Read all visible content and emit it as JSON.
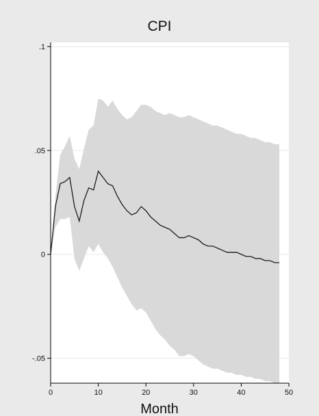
{
  "chart_data": {
    "type": "area",
    "title": "CPI",
    "xlabel": "Month",
    "ylabel": "",
    "xlim": [
      0,
      50
    ],
    "ylim": [
      -0.062,
      0.102
    ],
    "grid": true,
    "legend": "none",
    "x_ticks": [
      {
        "value": 0,
        "label": "0"
      },
      {
        "value": 10,
        "label": "10"
      },
      {
        "value": 20,
        "label": "20"
      },
      {
        "value": 30,
        "label": "30"
      },
      {
        "value": 40,
        "label": "40"
      },
      {
        "value": 50,
        "label": "50"
      }
    ],
    "y_ticks": [
      {
        "value": -0.05,
        "label": "-.05"
      },
      {
        "value": 0,
        "label": "0"
      },
      {
        "value": 0.05,
        "label": ".05"
      },
      {
        "value": 0.1,
        "label": ".1"
      }
    ],
    "x": [
      0,
      1,
      2,
      3,
      4,
      5,
      6,
      7,
      8,
      9,
      10,
      11,
      12,
      13,
      14,
      15,
      16,
      17,
      18,
      19,
      20,
      21,
      22,
      23,
      24,
      25,
      26,
      27,
      28,
      29,
      30,
      31,
      32,
      33,
      34,
      35,
      36,
      37,
      38,
      39,
      40,
      41,
      42,
      43,
      44,
      45,
      46,
      47,
      48
    ],
    "series": [
      {
        "role": "estimate",
        "values": [
          0.0,
          0.023,
          0.034,
          0.035,
          0.037,
          0.023,
          0.016,
          0.026,
          0.032,
          0.031,
          0.04,
          0.037,
          0.034,
          0.033,
          0.028,
          0.024,
          0.021,
          0.019,
          0.02,
          0.023,
          0.021,
          0.018,
          0.016,
          0.014,
          0.013,
          0.012,
          0.01,
          0.008,
          0.008,
          0.009,
          0.008,
          0.007,
          0.005,
          0.004,
          0.004,
          0.003,
          0.002,
          0.001,
          0.001,
          0.001,
          0.0,
          -0.001,
          -0.001,
          -0.002,
          -0.002,
          -0.003,
          -0.003,
          -0.004,
          -0.004
        ]
      },
      {
        "role": "upper_bound",
        "values": [
          0.0,
          0.028,
          0.048,
          0.052,
          0.057,
          0.046,
          0.041,
          0.051,
          0.06,
          0.062,
          0.075,
          0.074,
          0.071,
          0.074,
          0.07,
          0.067,
          0.065,
          0.066,
          0.069,
          0.072,
          0.072,
          0.071,
          0.069,
          0.068,
          0.067,
          0.068,
          0.067,
          0.066,
          0.066,
          0.067,
          0.066,
          0.065,
          0.064,
          0.063,
          0.062,
          0.062,
          0.061,
          0.06,
          0.059,
          0.058,
          0.058,
          0.057,
          0.056,
          0.056,
          0.055,
          0.054,
          0.054,
          0.053,
          0.053
        ]
      },
      {
        "role": "lower_bound",
        "values": [
          0.0,
          0.013,
          0.017,
          0.017,
          0.018,
          -0.002,
          -0.008,
          -0.002,
          0.004,
          0.001,
          0.005,
          0.001,
          -0.002,
          -0.006,
          -0.011,
          -0.016,
          -0.02,
          -0.024,
          -0.027,
          -0.026,
          -0.028,
          -0.032,
          -0.036,
          -0.039,
          -0.041,
          -0.044,
          -0.046,
          -0.049,
          -0.049,
          -0.048,
          -0.049,
          -0.051,
          -0.053,
          -0.054,
          -0.055,
          -0.055,
          -0.056,
          -0.057,
          -0.057,
          -0.058,
          -0.058,
          -0.059,
          -0.059,
          -0.06,
          -0.06,
          -0.061,
          -0.061,
          -0.062,
          -0.062
        ]
      }
    ],
    "colors": {
      "background": "#eaeaea",
      "plot_background": "#ffffff",
      "band_fill": "#d9d9d9",
      "line": "#1a1a1a",
      "grid": "#e8e8e8",
      "axis": "#000000"
    }
  }
}
